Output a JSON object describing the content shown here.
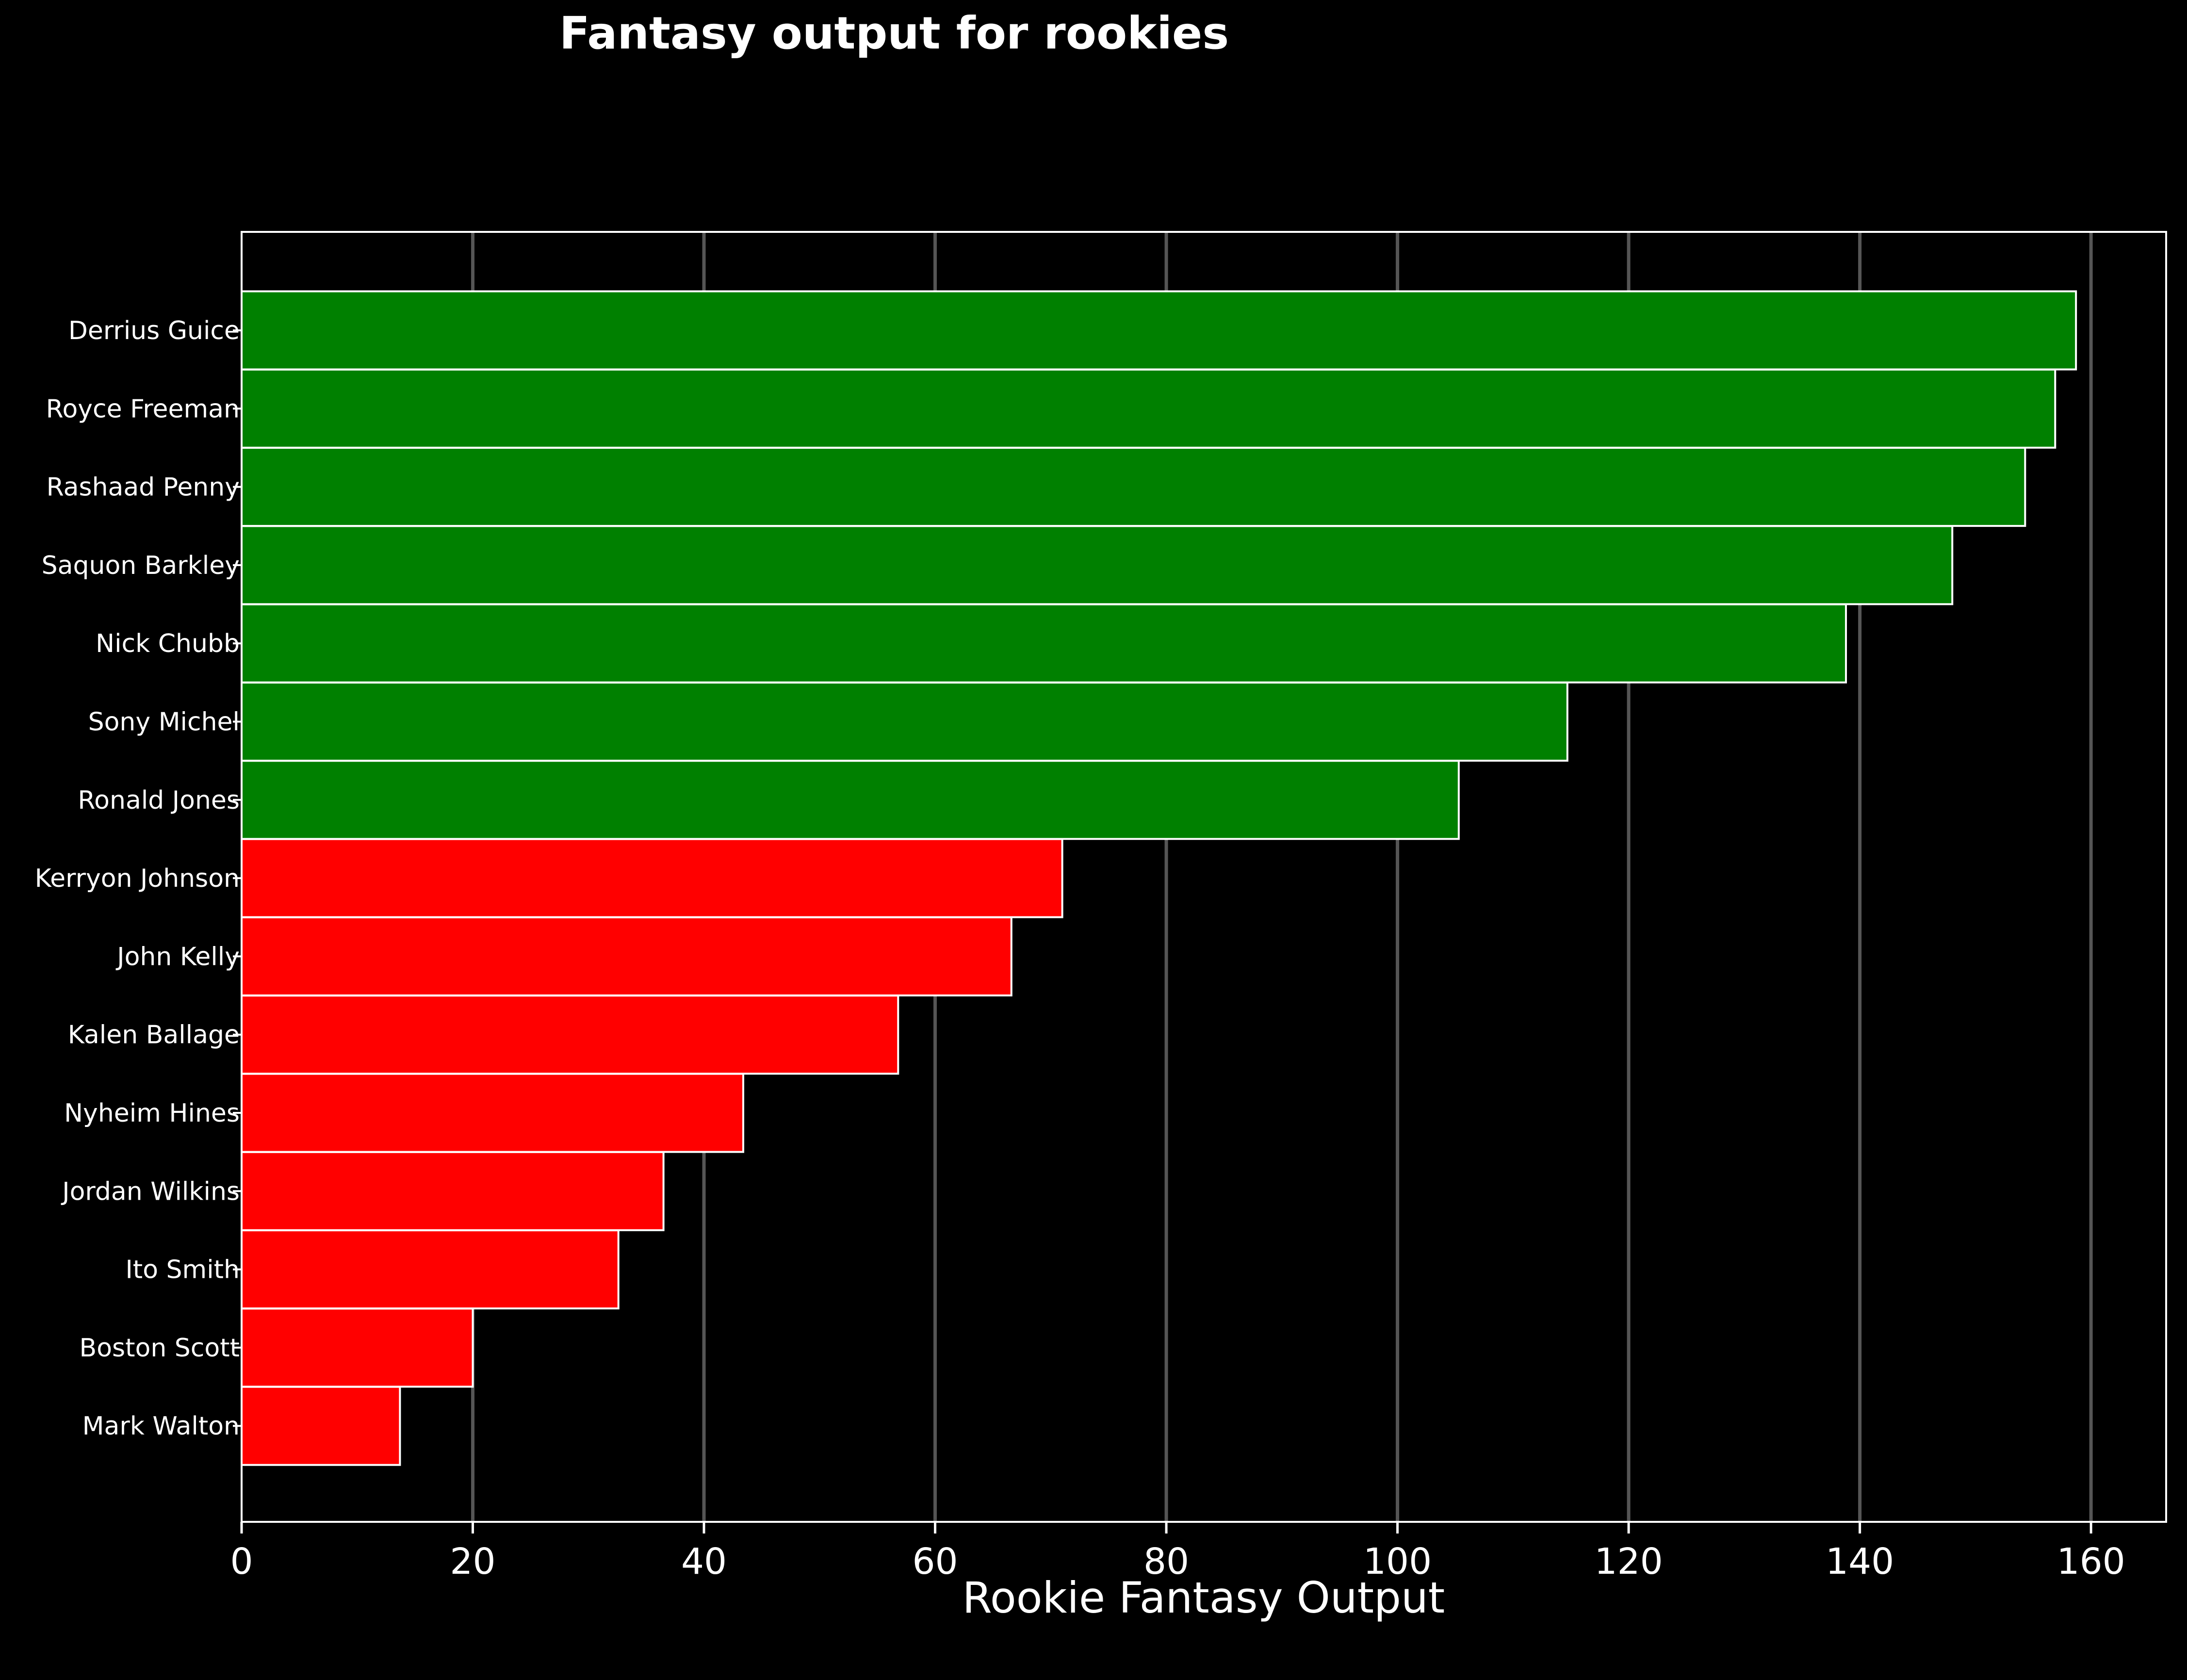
{
  "chart_data": {
    "type": "bar",
    "orientation": "horizontal",
    "title": "Fantasy output for rookies",
    "xlabel": "Rookie Fantasy Output",
    "ylabel": "",
    "xlim": [
      0,
      166.5
    ],
    "xticks": [
      0,
      20,
      40,
      60,
      80,
      100,
      120,
      140,
      160
    ],
    "grid": "vertical",
    "legend": "none",
    "categories": [
      "Derrius Guice",
      "Royce Freeman",
      "Rashaad Penny",
      "Saquon Barkley",
      "Nick Chubb",
      "Sony Michel",
      "Ronald Jones",
      "Kerryon Johnson",
      "John Kelly",
      "Kalen Ballage",
      "Nyheim Hines",
      "Jordan Wilkins",
      "Ito Smith",
      "Boston Scott",
      "Mark Walton"
    ],
    "values": [
      158.7,
      156.9,
      154.3,
      148.0,
      138.8,
      114.7,
      105.3,
      71.0,
      66.6,
      56.8,
      43.4,
      36.5,
      32.6,
      20.0,
      13.7
    ],
    "bar_colors": [
      "#008000",
      "#008000",
      "#008000",
      "#008000",
      "#008000",
      "#008000",
      "#008000",
      "#ff0000",
      "#ff0000",
      "#ff0000",
      "#ff0000",
      "#ff0000",
      "#ff0000",
      "#ff0000",
      "#ff0000"
    ]
  },
  "colors": {
    "background": "#000000",
    "text": "#ffffff",
    "bar_edge": "#ffffff",
    "grid": "#555555",
    "high": "#008000",
    "low": "#ff0000"
  }
}
